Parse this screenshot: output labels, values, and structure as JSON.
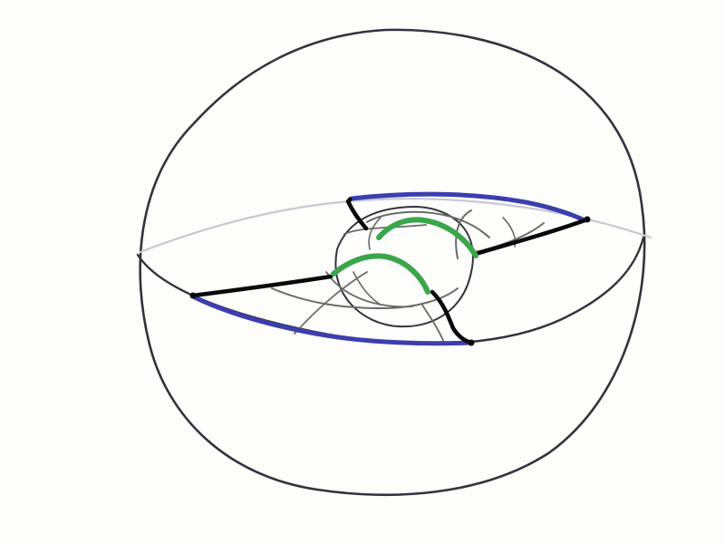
{
  "diagram": {
    "description_visible_text": "",
    "colors": {
      "background": "#fdfdfb",
      "outline": "#33333f",
      "equator_light": "#c8c8d4",
      "black_edge": "#0a0a0a",
      "gray_arc": "#6a6a6a",
      "blue_edge": "#3b3fae",
      "green_edge": "#3aa64a"
    }
  }
}
